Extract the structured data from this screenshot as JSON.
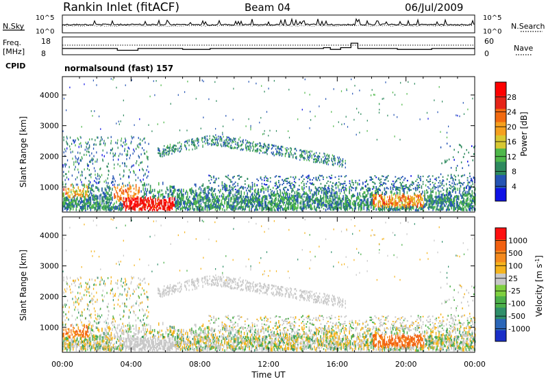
{
  "header": {
    "station": "Rankin Inlet (fitACF)",
    "beam": "Beam 04",
    "date": "06/Jul/2009"
  },
  "chart_data": [
    {
      "type": "line",
      "panel": "noise",
      "left_label": "N.Sky",
      "right_label": "N.Search",
      "left_ticks": [
        "10^5",
        "10^0"
      ],
      "right_ticks": [
        "10^5",
        "10^0"
      ],
      "series": [
        {
          "name": "N.Sky",
          "style": "solid"
        },
        {
          "name": "N.Search",
          "style": "dotted"
        }
      ]
    },
    {
      "type": "line",
      "panel": "frequency",
      "left_label_top": "Freq.",
      "left_label_bottom": "[MHz]",
      "right_label": "Nave",
      "left_ticks": [
        "18",
        "8"
      ],
      "right_ticks": [
        "60",
        "0"
      ],
      "ylim_left": [
        8,
        18
      ],
      "ylim_right": [
        0,
        60
      ],
      "series": [
        {
          "name": "Freq.",
          "style": "solid"
        },
        {
          "name": "Nave",
          "style": "dotted"
        }
      ]
    },
    {
      "type": "table",
      "panel": "cpid",
      "label": "CPID",
      "value": "normalsound (fast) 157"
    },
    {
      "type": "heatmap",
      "panel": "power",
      "ylabel": "Slant Range [km]",
      "yticks": [
        "1000",
        "2000",
        "3000",
        "4000"
      ],
      "ylim": [
        180,
        4600
      ],
      "colorbar_label": "Power [dB]",
      "colorbar_ticks": [
        "4",
        "8",
        "12",
        "16",
        "20",
        "24",
        "28"
      ],
      "colorbar_colors": [
        "#0f12e6",
        "#2454b4",
        "#2e8a5e",
        "#4fb84a",
        "#d8c832",
        "#f5a01e",
        "#f26a10",
        "#e62418",
        "#ff0000"
      ]
    },
    {
      "type": "heatmap",
      "panel": "velocity",
      "ylabel": "Slant Range [km]",
      "yticks": [
        "1000",
        "2000",
        "3000",
        "4000"
      ],
      "ylim": [
        180,
        4600
      ],
      "xlabel": "Time UT",
      "xticks": [
        "00:00",
        "04:00",
        "08:00",
        "12:00",
        "16:00",
        "20:00",
        "00:00"
      ],
      "colorbar_label": "Velocity [m s",
      "colorbar_label_sup": "-1",
      "colorbar_label_end": "]",
      "colorbar_ticks": [
        "1000",
        "500",
        "100",
        "25",
        "-25",
        "-100",
        "-500",
        "-1000"
      ],
      "colorbar_colors": [
        "#1a2fc8",
        "#2b66b8",
        "#2f8f6a",
        "#4cb04a",
        "#7fd040",
        "#c8c8c8",
        "#f5b41e",
        "#f58a1e",
        "#f26010",
        "#ff1010"
      ]
    }
  ]
}
